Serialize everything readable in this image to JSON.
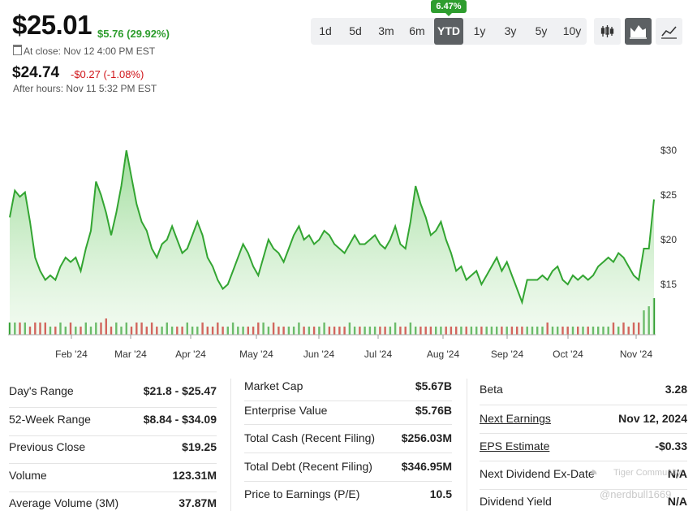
{
  "quote": {
    "price": "$25.01",
    "change": "$5.76 (29.92%)",
    "close_note": "At close: Nov 12 4:00 PM EST",
    "after_price": "$24.74",
    "after_change": "-$0.27 (-1.08%)",
    "after_note": "After hours: Nov 11 5:32 PM EST"
  },
  "ranges": [
    "1d",
    "5d",
    "3m",
    "6m",
    "YTD",
    "1y",
    "3y",
    "5y",
    "10y"
  ],
  "active_range": "YTD",
  "ytd_badge": "6.47%",
  "chart_types": [
    {
      "icon": "candlestick-chart-icon"
    },
    {
      "icon": "mountain-chart-icon",
      "active": true
    },
    {
      "icon": "line-chart-icon"
    }
  ],
  "colors": {
    "up": "#2e9d2e",
    "down": "#d0161b",
    "line": "#33a532"
  },
  "chart_data": {
    "type": "area",
    "y_ticks": [
      "$30",
      "$25",
      "$20",
      "$15"
    ],
    "ylim": [
      10,
      30
    ],
    "x_labels": [
      "Feb '24",
      "Mar '24",
      "Apr '24",
      "May '24",
      "Jun '24",
      "Jul '24",
      "Aug '24",
      "Sep '24",
      "Oct '24",
      "Nov '24"
    ],
    "price_series": [
      22.5,
      25.5,
      24.8,
      25.3,
      22,
      18,
      16.5,
      15.5,
      16,
      15.5,
      17,
      18,
      17.5,
      18,
      16.5,
      19,
      21,
      26.5,
      25,
      23,
      20.5,
      23,
      26,
      30,
      27,
      24,
      22,
      21,
      19,
      18,
      19.5,
      20,
      21.5,
      20,
      18.5,
      19,
      20.5,
      22,
      20.5,
      18,
      17,
      15.5,
      14.5,
      15,
      16.5,
      18,
      19.5,
      18.5,
      17,
      16,
      18,
      20,
      19,
      18.5,
      17.5,
      19,
      20.5,
      21.5,
      20,
      20.5,
      19.5,
      20,
      21,
      20.5,
      19.5,
      19,
      18.5,
      19.5,
      20.5,
      19.5,
      19.5,
      20,
      20.5,
      19.5,
      19,
      20,
      21.5,
      19.5,
      19,
      22,
      26,
      24,
      22.5,
      20.5,
      21,
      22,
      20,
      18.5,
      16.5,
      17,
      15.5,
      16,
      16.5,
      15,
      16,
      17,
      18,
      16.5,
      17.5,
      16,
      14.5,
      13,
      15.5,
      15.5,
      15.5,
      16,
      15.5,
      16.5,
      17,
      15.5,
      15,
      16,
      15.5,
      16,
      15.5,
      16,
      17,
      17.5,
      18,
      17.5,
      18.5,
      18,
      17,
      16,
      15.5,
      19,
      19,
      24.5
    ],
    "volume_series": [
      3,
      3,
      3,
      3,
      2,
      3,
      3,
      3,
      2,
      2,
      3,
      2,
      3,
      2,
      2,
      3,
      2,
      3,
      3,
      4,
      2,
      3,
      2,
      3,
      2,
      3,
      3,
      2,
      3,
      2,
      2,
      3,
      2,
      2,
      2,
      3,
      2,
      2,
      3,
      2,
      2,
      3,
      2,
      2,
      3,
      2,
      2,
      2,
      2,
      3,
      3,
      2,
      3,
      2,
      2,
      2,
      2,
      3,
      2,
      2,
      2,
      2,
      3,
      2,
      2,
      2,
      2,
      3,
      2,
      2,
      2,
      2,
      2,
      2,
      2,
      2,
      3,
      2,
      2,
      3,
      2,
      2,
      2,
      2,
      2,
      2,
      2,
      2,
      2,
      2,
      2,
      2,
      2,
      2,
      2,
      2,
      2,
      2,
      2,
      2,
      2,
      2,
      2,
      2,
      2,
      2,
      3,
      2,
      2,
      2,
      2,
      2,
      2,
      2,
      2,
      2,
      2,
      2,
      2,
      3,
      2,
      3,
      2,
      3,
      3,
      6,
      7,
      9
    ]
  },
  "stats": {
    "col1": [
      {
        "label": "Day's Range",
        "value": "$21.8 - $25.47"
      },
      {
        "label": "52-Week Range",
        "value": "$8.84 - $34.09"
      },
      {
        "label": "Previous Close",
        "value": "$19.25"
      },
      {
        "label": "Volume",
        "value": "123.31M"
      },
      {
        "label": "Average Volume (3M)",
        "value": "37.87M"
      }
    ],
    "col2": [
      {
        "label": "Market Cap",
        "value": "$5.67B"
      },
      {
        "label": "Enterprise Value",
        "value": "$5.76B"
      },
      {
        "label": "Total Cash (Recent Filing)",
        "value": "$256.03M"
      },
      {
        "label": "Total Debt (Recent Filing)",
        "value": "$346.95M"
      },
      {
        "label": "Price to Earnings (P/E)",
        "value": "10.5"
      }
    ],
    "col3": [
      {
        "label": "Beta",
        "value": "3.28"
      },
      {
        "label": "Next Earnings",
        "value": "Nov 12, 2024"
      },
      {
        "label": "EPS Estimate",
        "value": "-$0.33"
      },
      {
        "label": "Next Dividend Ex-Date",
        "value": "N/A"
      },
      {
        "label": "Dividend Yield",
        "value": "N/A"
      }
    ]
  },
  "watermark": {
    "line1": "Tiger Community",
    "line2": "@nerdbull1669"
  }
}
